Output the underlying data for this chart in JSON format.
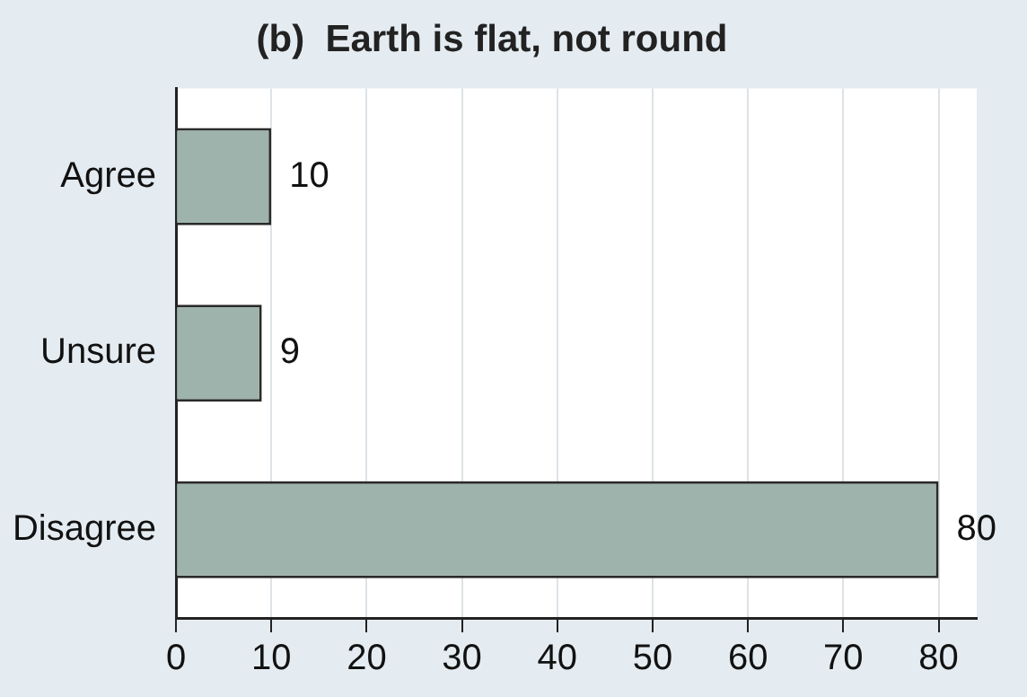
{
  "chart_data": {
    "type": "bar",
    "orientation": "horizontal",
    "title": "(b)  Earth is flat, not round",
    "categories": [
      "Agree",
      "Unsure",
      "Disagree"
    ],
    "values": [
      10,
      9,
      80
    ],
    "color": "#9db3ab",
    "xlim": [
      0,
      84
    ],
    "xticks": [
      0,
      10,
      20,
      30,
      40,
      50,
      60,
      70,
      80
    ],
    "grid": "x",
    "data_labels": true,
    "legend": false
  }
}
